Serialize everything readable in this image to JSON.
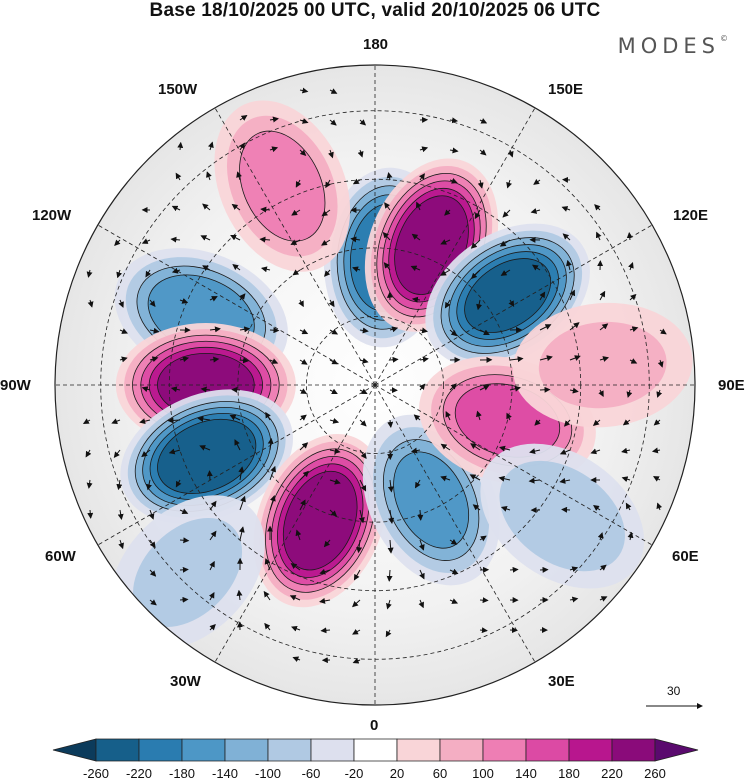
{
  "title": "Base 18/10/2025 00 UTC, valid 20/10/2025 06 UTC",
  "brand": "MODES",
  "brand_mark": "©",
  "longitude_labels": {
    "top": "180",
    "bottom": "0",
    "left": "90W",
    "right": "90E",
    "nw_upper": "150W",
    "nw_lower": "120W",
    "ne_upper": "150E",
    "ne_lower": "120E",
    "sw_upper": "60W",
    "sw_lower": "30W",
    "se_upper": "60E",
    "se_lower": "30E"
  },
  "vector_reference": "30",
  "colorbar": {
    "ticks": [
      "-260",
      "-220",
      "-180",
      "-140",
      "-100",
      "-60",
      "-20",
      "20",
      "60",
      "100",
      "140",
      "180",
      "220",
      "260"
    ],
    "colors": [
      "#0c3b5b",
      "#165f8a",
      "#2a7cb0",
      "#4d97c6",
      "#80b1d6",
      "#b0c9e3",
      "#dde0ee",
      "#ffffff",
      "#f9d5d8",
      "#f4aec3",
      "#ee7eb4",
      "#dc4aa4",
      "#b8168e",
      "#8a0b7a",
      "#5a0a6e"
    ]
  },
  "anomalies": [
    {
      "lon": 175,
      "lat": 62,
      "value": -210
    },
    {
      "lon": 158,
      "lat": 57,
      "value": 250
    },
    {
      "lon": 124,
      "lat": 55,
      "value": -225
    },
    {
      "lon": -112,
      "lat": 49,
      "value": -160
    },
    {
      "lon": -90,
      "lat": 53,
      "value": 230
    },
    {
      "lon": -67,
      "lat": 50,
      "value": -250
    },
    {
      "lon": -22,
      "lat": 58,
      "value": 250
    },
    {
      "lon": 26,
      "lat": 62,
      "value": -140
    },
    {
      "lon": 75,
      "lat": 60,
      "value": 150
    },
    {
      "lon": -155,
      "lat": 42,
      "value": 110
    },
    {
      "lon": 95,
      "lat": 40,
      "value": 60
    },
    {
      "lon": -45,
      "lat": 32,
      "value": -60
    },
    {
      "lon": 55,
      "lat": 40,
      "value": -80
    }
  ]
}
